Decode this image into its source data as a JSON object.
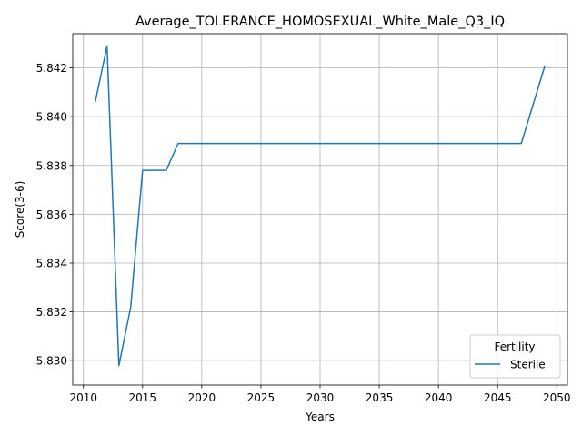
{
  "chart_data": {
    "type": "line",
    "title": "Average_TOLERANCE_HOMOSEXUAL_White_Male_Q3_IQ",
    "xlabel": "Years",
    "ylabel": "Score(3-6)",
    "xlim": [
      2009.1,
      2050.9
    ],
    "ylim": [
      5.829,
      5.8434
    ],
    "xticks": [
      2010,
      2015,
      2020,
      2025,
      2030,
      2035,
      2040,
      2045,
      2050
    ],
    "yticks": [
      5.83,
      5.832,
      5.834,
      5.836,
      5.838,
      5.84,
      5.842
    ],
    "ytick_labels": [
      "5.830",
      "5.832",
      "5.834",
      "5.836",
      "5.838",
      "5.840",
      "5.842"
    ],
    "grid": true,
    "legend": {
      "title": "Fertility",
      "placement": "lower right"
    },
    "series": [
      {
        "name": "Sterile",
        "color": "#1f77b4",
        "x": [
          2011,
          2012,
          2013,
          2014,
          2015,
          2016,
          2017,
          2018,
          2019,
          2020,
          2021,
          2022,
          2023,
          2024,
          2025,
          2026,
          2027,
          2028,
          2029,
          2030,
          2031,
          2032,
          2033,
          2034,
          2035,
          2036,
          2037,
          2038,
          2039,
          2040,
          2041,
          2042,
          2043,
          2044,
          2045,
          2046,
          2047,
          2048,
          2049
        ],
        "y": [
          5.8406,
          5.8429,
          5.8298,
          5.8322,
          5.8378,
          5.8378,
          5.8378,
          5.8389,
          5.8389,
          5.8389,
          5.8389,
          5.8389,
          5.8389,
          5.8389,
          5.8389,
          5.8389,
          5.8389,
          5.8389,
          5.8389,
          5.8389,
          5.8389,
          5.8389,
          5.8389,
          5.8389,
          5.8389,
          5.8389,
          5.8389,
          5.8389,
          5.8389,
          5.8389,
          5.8389,
          5.8389,
          5.8389,
          5.8389,
          5.8389,
          5.8389,
          5.8389,
          5.8405,
          5.8421
        ]
      }
    ]
  }
}
